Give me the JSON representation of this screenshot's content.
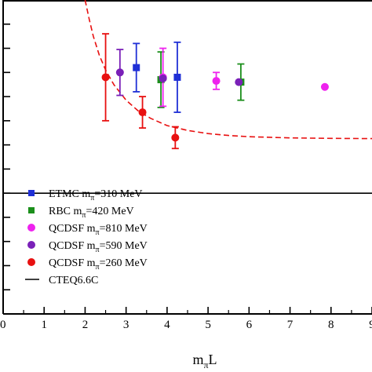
{
  "chart_data": {
    "type": "scatter",
    "xlabel": "m",
    "xlabel_sub": "π",
    "xlabel_tail": "L",
    "xlim": [
      0,
      9
    ],
    "x_ticks": [
      "0",
      "1",
      "2",
      "3",
      "4",
      "5",
      "6",
      "7",
      "8",
      "9"
    ],
    "ylim": [
      -5,
      8
    ],
    "reference_line": {
      "y": 0
    },
    "series": [
      {
        "name": "ETMC m",
        "name_sub": "π",
        "name_tail": "=310 MeV",
        "color": "#1f2fd6",
        "marker": "square",
        "points": [
          {
            "x": 3.25,
            "y": 5.2,
            "err": 1.0
          },
          {
            "x": 4.25,
            "y": 4.8,
            "err": 1.45
          }
        ]
      },
      {
        "name": "RBC m",
        "name_sub": "π",
        "name_tail": "=420 MeV",
        "color": "#1b8f1b",
        "marker": "square",
        "points": [
          {
            "x": 3.85,
            "y": 4.7,
            "err": 1.15
          },
          {
            "x": 5.8,
            "y": 4.6,
            "err": 0.75
          }
        ]
      },
      {
        "name": "QCDSF m",
        "name_sub": "π",
        "name_tail": "=810 MeV",
        "color": "#ee22ee",
        "marker": "circle",
        "points": [
          {
            "x": 3.9,
            "y": 4.8,
            "err": 1.2
          },
          {
            "x": 5.2,
            "y": 4.65,
            "err": 0.35
          },
          {
            "x": 7.85,
            "y": 4.4,
            "err": 0
          }
        ]
      },
      {
        "name": "QCDSF m",
        "name_sub": "π",
        "name_tail": "=590 MeV",
        "color": "#7a20b8",
        "marker": "circle",
        "points": [
          {
            "x": 2.85,
            "y": 5.0,
            "err": 0.95
          },
          {
            "x": 3.9,
            "y": 4.75,
            "err": 0
          },
          {
            "x": 5.75,
            "y": 4.6,
            "err": 0
          }
        ]
      },
      {
        "name": "QCDSF m",
        "name_sub": "π",
        "name_tail": "=260 MeV",
        "color": "#e81010",
        "marker": "circle",
        "points": [
          {
            "x": 2.5,
            "y": 4.8,
            "err": 1.8
          },
          {
            "x": 3.4,
            "y": 3.35,
            "err": 0.65
          },
          {
            "x": 4.2,
            "y": 2.3,
            "err": 0.45
          }
        ]
      }
    ],
    "curve": {
      "color": "#e81010",
      "style": "dashed",
      "points": [
        [
          2.0,
          8.0
        ],
        [
          2.1,
          7.2
        ],
        [
          2.2,
          6.5
        ],
        [
          2.35,
          5.7
        ],
        [
          2.5,
          5.1
        ],
        [
          2.7,
          4.5
        ],
        [
          3.0,
          3.85
        ],
        [
          3.3,
          3.4
        ],
        [
          3.6,
          3.1
        ],
        [
          4.0,
          2.8
        ],
        [
          4.5,
          2.6
        ],
        [
          5.0,
          2.47
        ],
        [
          5.5,
          2.39
        ],
        [
          6.0,
          2.34
        ],
        [
          7.0,
          2.29
        ],
        [
          8.0,
          2.27
        ],
        [
          9.0,
          2.26
        ]
      ]
    },
    "legend": {
      "placement": "bottom-left",
      "entries": [
        {
          "name": "ETMC m",
          "name_sub": "π",
          "name_tail": "=310 MeV",
          "color": "#1f2fd6",
          "marker": "square"
        },
        {
          "name": "RBC m",
          "name_sub": "π",
          "name_tail": "=420 MeV",
          "color": "#1b8f1b",
          "marker": "square"
        },
        {
          "name": "QCDSF m",
          "name_sub": "π",
          "name_tail": "=810 MeV",
          "color": "#ee22ee",
          "marker": "circle"
        },
        {
          "name": "QCDSF m",
          "name_sub": "π",
          "name_tail": "=590 MeV",
          "color": "#7a20b8",
          "marker": "circle"
        },
        {
          "name": "QCDSF m",
          "name_sub": "π",
          "name_tail": "=260 MeV",
          "color": "#e81010",
          "marker": "circle"
        },
        {
          "name": "CTEQ6.6C",
          "name_sub": "",
          "name_tail": "",
          "color": "#000000",
          "marker": "line"
        }
      ]
    }
  }
}
